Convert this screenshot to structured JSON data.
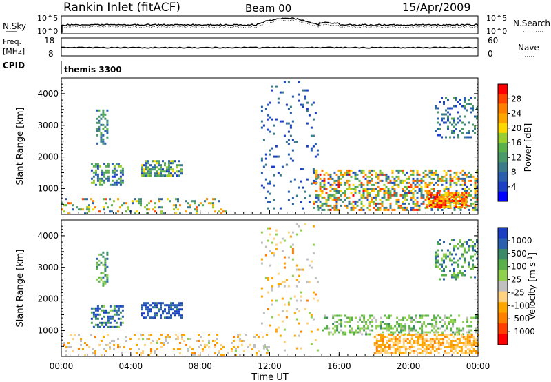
{
  "header": {
    "station": "Rankin Inlet (fitACF)",
    "beam": "Beam 00",
    "date": "15/Apr/2009"
  },
  "top_panels": {
    "nsky_label": "N.Sky",
    "nsearch_label": "N.Search",
    "nsky_ticks": [
      "10^5",
      "10^0"
    ],
    "nsearch_ticks": [
      "10^5",
      "10^0"
    ],
    "freq_label": "Freq.",
    "freq_unit": "[MHz]",
    "freq_ticks": [
      "18",
      "8"
    ],
    "nave_label": "Nave",
    "nave_ticks": [
      "60",
      "0"
    ],
    "cpid_label": "CPID",
    "cpid_value": "themis 3300"
  },
  "x_axis": {
    "label": "Time UT",
    "ticks": [
      "00:00",
      "04:00",
      "08:00",
      "12:00",
      "16:00",
      "20:00",
      "00:00"
    ]
  },
  "y_axis": {
    "label": "Slant Range [km]",
    "ticks": [
      "1000",
      "2000",
      "3000",
      "4000"
    ]
  },
  "power_colorbar": {
    "label": "Power [dB]",
    "ticks": [
      "28",
      "24",
      "20",
      "16",
      "12",
      "8",
      "4"
    ],
    "colors": [
      "#0000ff",
      "#1c3fc4",
      "#2a5fb0",
      "#3a7a8a",
      "#4a9a6a",
      "#5ab04a",
      "#9acd32",
      "#ffd700",
      "#ffa500",
      "#ff7f00",
      "#ff4500",
      "#ff0000"
    ]
  },
  "velocity_colorbar": {
    "label": "Velocity [m s^-1]",
    "ticks": [
      "1000",
      "500",
      "100",
      "25",
      "-25",
      "-100",
      "-500",
      "-1000"
    ],
    "colors": [
      "#1a3fc0",
      "#2a60b0",
      "#3a8a6a",
      "#5ab04a",
      "#8fd14f",
      "#c0c0c0",
      "#ffd27f",
      "#ffa500",
      "#ff7f00",
      "#ff4000",
      "#ff0000"
    ]
  },
  "chart_data": [
    {
      "type": "heatmap",
      "title": "Power",
      "xlabel": "Time UT",
      "ylabel": "Slant Range [km]",
      "xlim_hours": [
        0,
        24
      ],
      "ylim_km": [
        180,
        4500
      ],
      "colorbar_label": "Power [dB]",
      "clim": [
        0,
        32
      ],
      "clusters": [
        {
          "t0": 0.0,
          "t1": 9.5,
          "r0": 200,
          "r1": 700,
          "density": 0.18,
          "v0": 6,
          "v1": 28
        },
        {
          "t0": 2.0,
          "t1": 2.6,
          "r0": 2400,
          "r1": 3500,
          "density": 0.45,
          "v0": 6,
          "v1": 14
        },
        {
          "t0": 1.7,
          "t1": 3.5,
          "r0": 1100,
          "r1": 1800,
          "density": 0.5,
          "v0": 4,
          "v1": 18
        },
        {
          "t0": 4.6,
          "t1": 6.9,
          "r0": 1400,
          "r1": 1900,
          "density": 0.55,
          "v0": 4,
          "v1": 20
        },
        {
          "t0": 11.5,
          "t1": 14.8,
          "r0": 400,
          "r1": 4400,
          "density": 0.08,
          "v0": 3,
          "v1": 10
        },
        {
          "t0": 14.5,
          "t1": 24.0,
          "r0": 300,
          "r1": 1600,
          "density": 0.45,
          "v0": 4,
          "v1": 30
        },
        {
          "t0": 21.0,
          "t1": 23.3,
          "r0": 400,
          "r1": 900,
          "density": 0.8,
          "v0": 18,
          "v1": 32
        },
        {
          "t0": 21.5,
          "t1": 23.9,
          "r0": 2600,
          "r1": 3900,
          "density": 0.3,
          "v0": 4,
          "v1": 14
        }
      ]
    },
    {
      "type": "heatmap",
      "title": "Velocity",
      "xlabel": "Time UT",
      "ylabel": "Slant Range [km]",
      "xlim_hours": [
        0,
        24
      ],
      "ylim_km": [
        180,
        4500
      ],
      "colorbar_label": "Velocity [m s^-1]",
      "clim": [
        -1000,
        1000
      ],
      "clusters": [
        {
          "t0": 0.0,
          "t1": 12.0,
          "r0": 200,
          "r1": 900,
          "density": 0.18,
          "v0": -500,
          "v1": 100
        },
        {
          "t0": 2.0,
          "t1": 2.6,
          "r0": 2400,
          "r1": 3500,
          "density": 0.45,
          "v0": 100,
          "v1": 800
        },
        {
          "t0": 1.7,
          "t1": 3.5,
          "r0": 1100,
          "r1": 1800,
          "density": 0.5,
          "v0": 200,
          "v1": 1000
        },
        {
          "t0": 4.6,
          "t1": 6.9,
          "r0": 1400,
          "r1": 1900,
          "density": 0.55,
          "v0": 600,
          "v1": 1000
        },
        {
          "t0": 11.5,
          "t1": 14.8,
          "r0": 400,
          "r1": 4400,
          "density": 0.07,
          "v0": -500,
          "v1": 200
        },
        {
          "t0": 15.0,
          "t1": 24.0,
          "r0": 900,
          "r1": 1500,
          "density": 0.4,
          "v0": 0,
          "v1": 500
        },
        {
          "t0": 18.0,
          "t1": 24.0,
          "r0": 250,
          "r1": 900,
          "density": 0.65,
          "v0": -500,
          "v1": -100
        },
        {
          "t0": 21.5,
          "t1": 23.9,
          "r0": 2600,
          "r1": 3900,
          "density": 0.3,
          "v0": 100,
          "v1": 800
        }
      ]
    }
  ]
}
